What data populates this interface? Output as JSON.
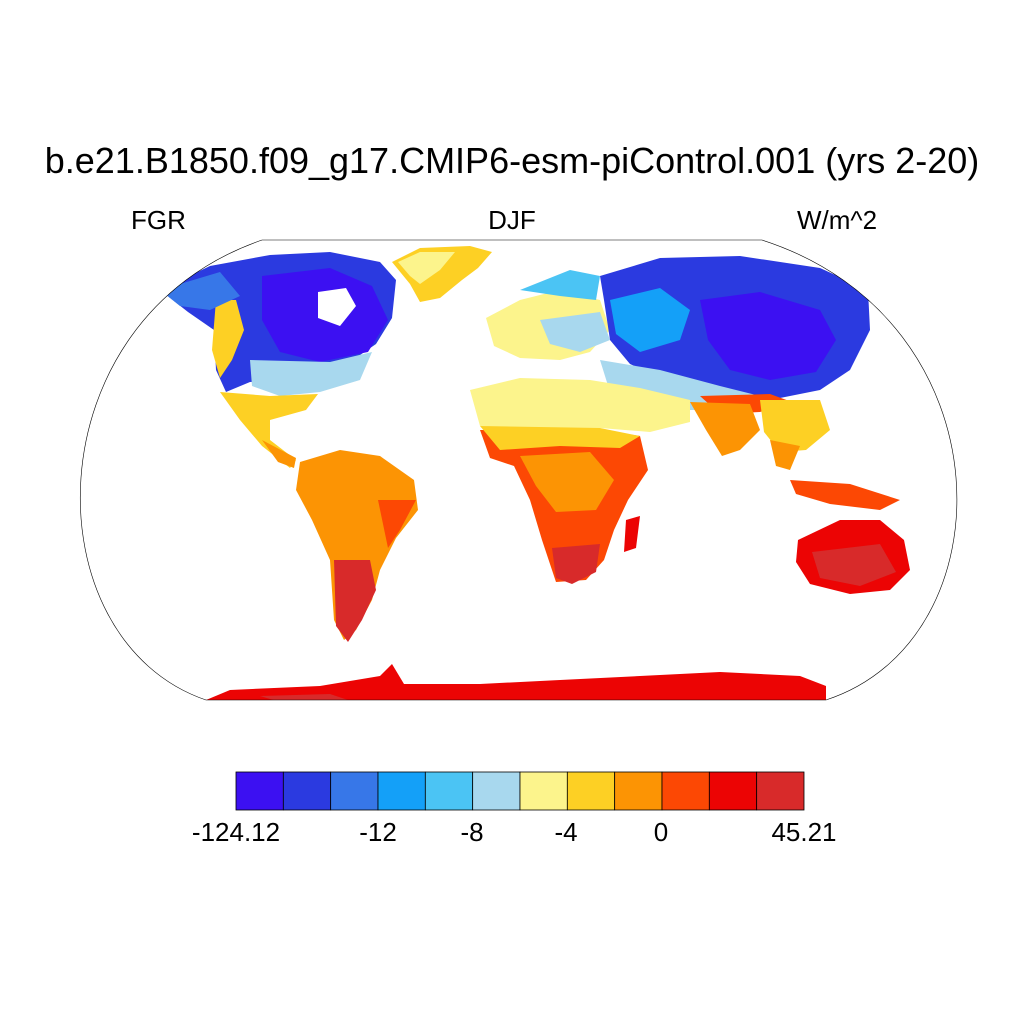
{
  "header": {
    "title": "b.e21.B1850.f09_g17.CMIP6-esm-piControl.001 (yrs 2-20)",
    "left": "FGR",
    "center": "DJF",
    "right": "W/m^2"
  },
  "colorbar": {
    "colors": [
      "#3c10f2",
      "#2b3ae0",
      "#3777e8",
      "#14a0f8",
      "#4bc4f4",
      "#a8d8ee",
      "#fcf48c",
      "#fdd024",
      "#fc9404",
      "#fc4804",
      "#ec0404",
      "#d82a2a"
    ],
    "labels": [
      "-124.12",
      "-12",
      "-8",
      "-4",
      "0",
      "45.21"
    ]
  },
  "map": {
    "projection": "Robinson",
    "ocean_color": "#ffffff",
    "coastline_color": "#000000"
  }
}
